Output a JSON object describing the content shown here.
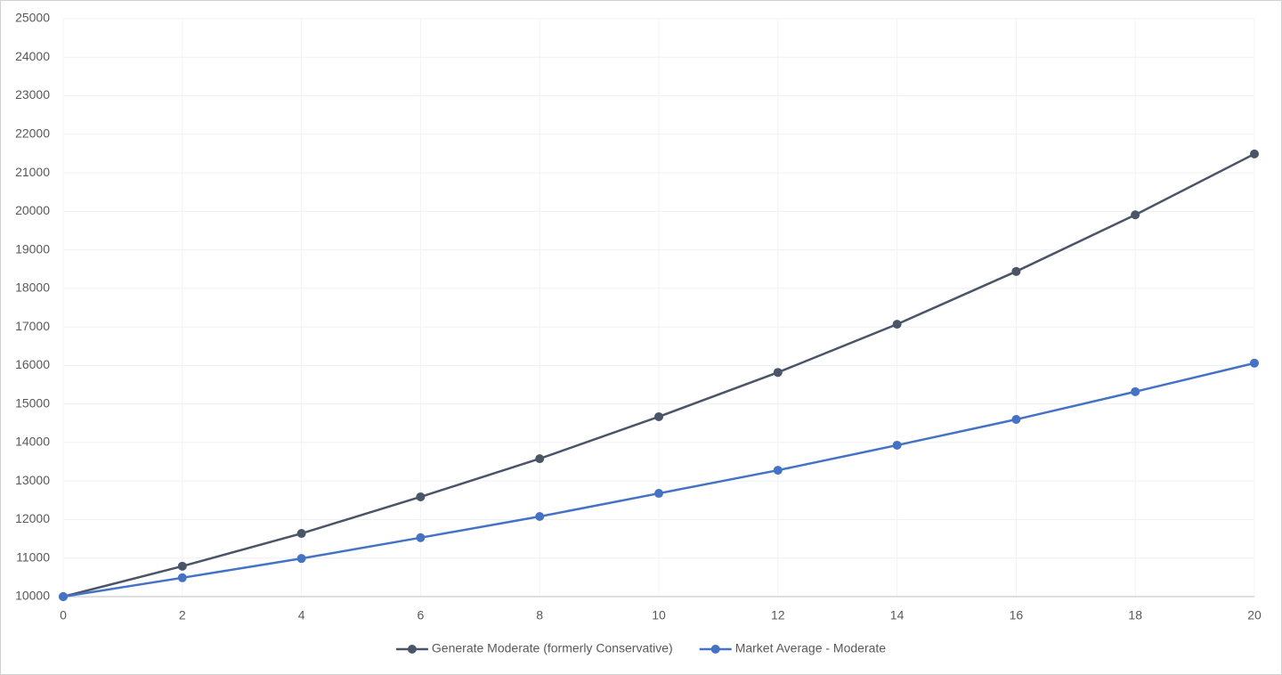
{
  "chart_data": {
    "type": "line",
    "x": [
      0,
      2,
      4,
      6,
      8,
      10,
      12,
      14,
      16,
      18,
      20
    ],
    "series": [
      {
        "name": "Generate Moderate (formerly Conservative)",
        "color": "#4a5568",
        "values": [
          10000,
          10790,
          11640,
          12590,
          13580,
          14670,
          15820,
          17070,
          18440,
          19910,
          21490
        ]
      },
      {
        "name": "Market Average - Moderate",
        "color": "#4472c4",
        "values": [
          10000,
          10490,
          10990,
          11530,
          12080,
          12680,
          13280,
          13930,
          14600,
          15320,
          16060
        ]
      }
    ],
    "xlim": [
      0,
      20
    ],
    "xticks": [
      0,
      2,
      4,
      6,
      8,
      10,
      12,
      14,
      16,
      18,
      20
    ],
    "ylim": [
      10000,
      25000
    ],
    "yticks": [
      10000,
      11000,
      12000,
      13000,
      14000,
      15000,
      16000,
      17000,
      18000,
      19000,
      20000,
      21000,
      22000,
      23000,
      24000,
      25000
    ],
    "grid": true,
    "legend": "bottom"
  }
}
